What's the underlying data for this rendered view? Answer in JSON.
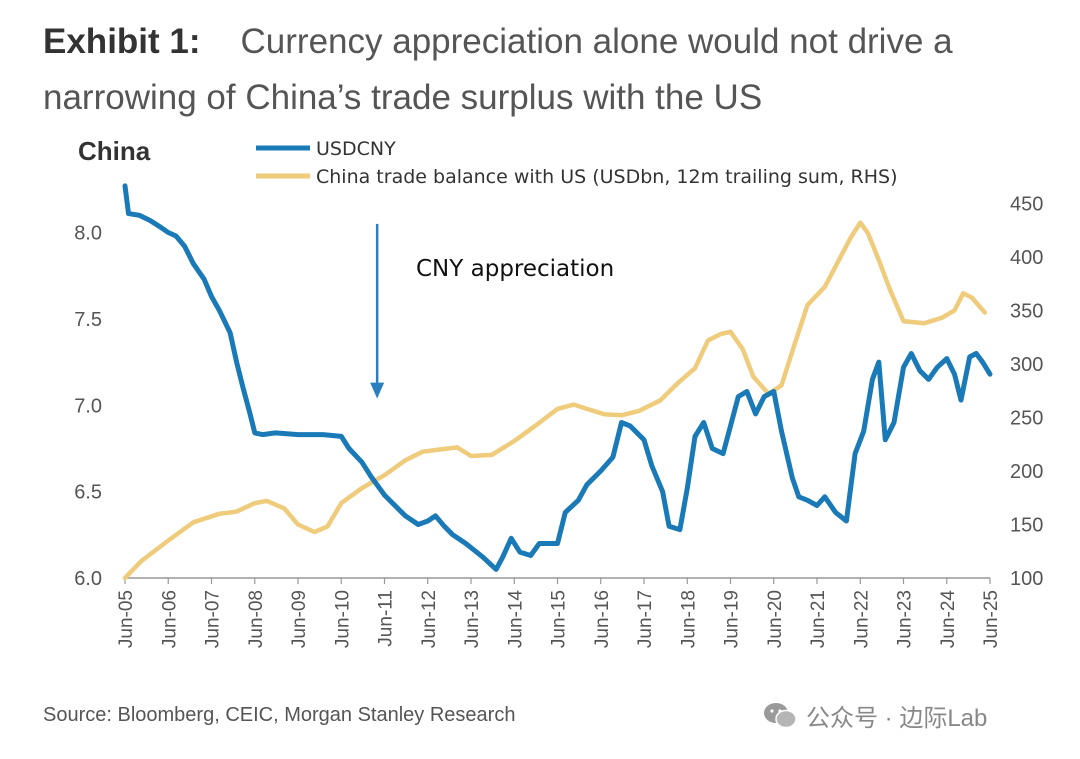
{
  "header": {
    "exhibit": "Exhibit 1:",
    "title": "Currency appreciation alone would not drive a narrowing of China’s trade surplus with the US"
  },
  "panel_label": "China",
  "source": "Source: Bloomberg, CEIC, Morgan Stanley Research",
  "watermark": {
    "text": "公众号 · 边际Lab",
    "icon": "wechat-logo-icon"
  },
  "colors": {
    "usdcny": "#1a7ab8",
    "trade": "#efcb7c",
    "axis": "#555555",
    "arrow": "#2a7fbf"
  },
  "chart_data": {
    "type": "line",
    "x_ticks": [
      "Jun-05",
      "Jun-06",
      "Jun-07",
      "Jun-08",
      "Jun-09",
      "Jun-10",
      "Jun-11",
      "Jun-12",
      "Jun-13",
      "Jun-14",
      "Jun-15",
      "Jun-16",
      "Jun-17",
      "Jun-18",
      "Jun-19",
      "Jun-20",
      "Jun-21",
      "Jun-22",
      "Jun-23",
      "Jun-24",
      "Jun-25"
    ],
    "x_range": [
      2005.42,
      2025.42
    ],
    "y_left": {
      "ticks": [
        "6.0",
        "6.5",
        "7.0",
        "7.5",
        "8.0"
      ],
      "ylim": [
        6.0,
        8.2
      ]
    },
    "y_right": {
      "ticks": [
        "100",
        "150",
        "200",
        "250",
        "300",
        "350",
        "400",
        "450"
      ],
      "ylim": [
        100,
        455
      ]
    },
    "annotation": {
      "text": "CNY appreciation",
      "arrow_x": 2011.25,
      "arrow_from": 8.05,
      "arrow_to": 7.05
    },
    "series": [
      {
        "name": "USDCNY",
        "axis": "left",
        "points": [
          [
            2005.42,
            8.27
          ],
          [
            2005.5,
            8.11
          ],
          [
            2005.75,
            8.1
          ],
          [
            2006.0,
            8.07
          ],
          [
            2006.25,
            8.03
          ],
          [
            2006.42,
            8.0
          ],
          [
            2006.6,
            7.98
          ],
          [
            2006.8,
            7.92
          ],
          [
            2007.0,
            7.82
          ],
          [
            2007.25,
            7.73
          ],
          [
            2007.42,
            7.63
          ],
          [
            2007.6,
            7.55
          ],
          [
            2007.85,
            7.42
          ],
          [
            2008.0,
            7.25
          ],
          [
            2008.15,
            7.1
          ],
          [
            2008.3,
            6.96
          ],
          [
            2008.42,
            6.84
          ],
          [
            2008.6,
            6.83
          ],
          [
            2008.9,
            6.84
          ],
          [
            2009.42,
            6.83
          ],
          [
            2010.0,
            6.83
          ],
          [
            2010.42,
            6.82
          ],
          [
            2010.6,
            6.75
          ],
          [
            2010.9,
            6.67
          ],
          [
            2011.1,
            6.59
          ],
          [
            2011.42,
            6.48
          ],
          [
            2011.7,
            6.41
          ],
          [
            2011.9,
            6.36
          ],
          [
            2012.2,
            6.31
          ],
          [
            2012.42,
            6.33
          ],
          [
            2012.6,
            6.36
          ],
          [
            2012.8,
            6.3
          ],
          [
            2013.0,
            6.25
          ],
          [
            2013.3,
            6.2
          ],
          [
            2013.5,
            6.16
          ],
          [
            2013.7,
            6.12
          ],
          [
            2014.0,
            6.05
          ],
          [
            2014.15,
            6.12
          ],
          [
            2014.35,
            6.23
          ],
          [
            2014.55,
            6.15
          ],
          [
            2014.8,
            6.13
          ],
          [
            2015.0,
            6.2
          ],
          [
            2015.42,
            6.2
          ],
          [
            2015.6,
            6.38
          ],
          [
            2015.9,
            6.45
          ],
          [
            2016.1,
            6.54
          ],
          [
            2016.42,
            6.62
          ],
          [
            2016.7,
            6.7
          ],
          [
            2016.9,
            6.9
          ],
          [
            2017.1,
            6.88
          ],
          [
            2017.42,
            6.8
          ],
          [
            2017.6,
            6.65
          ],
          [
            2017.85,
            6.5
          ],
          [
            2018.0,
            6.3
          ],
          [
            2018.25,
            6.28
          ],
          [
            2018.42,
            6.52
          ],
          [
            2018.6,
            6.82
          ],
          [
            2018.8,
            6.9
          ],
          [
            2019.0,
            6.75
          ],
          [
            2019.25,
            6.72
          ],
          [
            2019.42,
            6.88
          ],
          [
            2019.6,
            7.05
          ],
          [
            2019.8,
            7.08
          ],
          [
            2020.0,
            6.95
          ],
          [
            2020.2,
            7.05
          ],
          [
            2020.42,
            7.08
          ],
          [
            2020.6,
            6.85
          ],
          [
            2020.85,
            6.58
          ],
          [
            2021.0,
            6.47
          ],
          [
            2021.2,
            6.45
          ],
          [
            2021.42,
            6.42
          ],
          [
            2021.6,
            6.47
          ],
          [
            2021.85,
            6.38
          ],
          [
            2022.1,
            6.33
          ],
          [
            2022.3,
            6.72
          ],
          [
            2022.5,
            6.85
          ],
          [
            2022.7,
            7.15
          ],
          [
            2022.85,
            7.25
          ],
          [
            2023.0,
            6.8
          ],
          [
            2023.2,
            6.9
          ],
          [
            2023.42,
            7.22
          ],
          [
            2023.6,
            7.3
          ],
          [
            2023.8,
            7.2
          ],
          [
            2024.0,
            7.15
          ],
          [
            2024.2,
            7.22
          ],
          [
            2024.42,
            7.27
          ],
          [
            2024.6,
            7.18
          ],
          [
            2024.75,
            7.03
          ],
          [
            2024.95,
            7.28
          ],
          [
            2025.1,
            7.3
          ],
          [
            2025.25,
            7.25
          ],
          [
            2025.42,
            7.18
          ]
        ]
      },
      {
        "name": "China trade balance with US (USDbn, 12m trailing sum, RHS)",
        "axis": "right",
        "points": [
          [
            2005.42,
            100
          ],
          [
            2005.8,
            116
          ],
          [
            2006.42,
            135
          ],
          [
            2007.0,
            152
          ],
          [
            2007.6,
            160
          ],
          [
            2008.0,
            162
          ],
          [
            2008.42,
            170
          ],
          [
            2008.7,
            172
          ],
          [
            2009.1,
            165
          ],
          [
            2009.42,
            150
          ],
          [
            2009.8,
            143
          ],
          [
            2010.1,
            148
          ],
          [
            2010.42,
            170
          ],
          [
            2010.9,
            184
          ],
          [
            2011.42,
            196
          ],
          [
            2011.9,
            210
          ],
          [
            2012.3,
            218
          ],
          [
            2012.7,
            220
          ],
          [
            2013.1,
            222
          ],
          [
            2013.42,
            214
          ],
          [
            2013.9,
            215
          ],
          [
            2014.42,
            228
          ],
          [
            2014.9,
            242
          ],
          [
            2015.42,
            258
          ],
          [
            2015.8,
            262
          ],
          [
            2016.1,
            258
          ],
          [
            2016.5,
            253
          ],
          [
            2016.9,
            252
          ],
          [
            2017.3,
            256
          ],
          [
            2017.8,
            266
          ],
          [
            2018.2,
            282
          ],
          [
            2018.6,
            296
          ],
          [
            2018.9,
            322
          ],
          [
            2019.2,
            328
          ],
          [
            2019.42,
            330
          ],
          [
            2019.7,
            314
          ],
          [
            2019.95,
            288
          ],
          [
            2020.3,
            272
          ],
          [
            2020.6,
            280
          ],
          [
            2020.9,
            318
          ],
          [
            2021.2,
            355
          ],
          [
            2021.6,
            372
          ],
          [
            2021.9,
            395
          ],
          [
            2022.2,
            418
          ],
          [
            2022.42,
            432
          ],
          [
            2022.6,
            422
          ],
          [
            2022.85,
            397
          ],
          [
            2023.1,
            370
          ],
          [
            2023.42,
            340
          ],
          [
            2023.9,
            338
          ],
          [
            2024.3,
            343
          ],
          [
            2024.6,
            350
          ],
          [
            2024.8,
            366
          ],
          [
            2025.0,
            362
          ],
          [
            2025.15,
            355
          ],
          [
            2025.3,
            348
          ]
        ]
      }
    ]
  }
}
